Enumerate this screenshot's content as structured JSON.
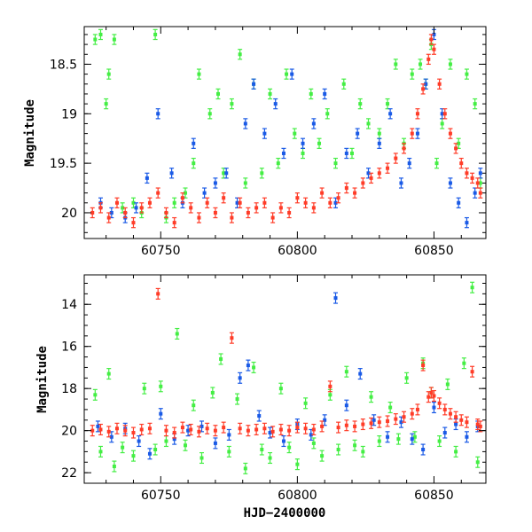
{
  "chart_data": [
    {
      "type": "scatter",
      "title": "",
      "xlabel": "",
      "ylabel": "Magnitude",
      "xlim": [
        60722,
        60869
      ],
      "ylim": [
        20.26,
        18.12
      ],
      "y_inverted": true,
      "xticks": [
        60750,
        60800,
        60850
      ],
      "xtick_labels": [
        "60750",
        "60800",
        "60850"
      ],
      "yticks": [
        18.5,
        19,
        19.5,
        20
      ],
      "ytick_labels": [
        "18.5",
        "19",
        "19.5",
        "20"
      ],
      "grid": false,
      "legend": "none",
      "error_bars": true,
      "series": [
        {
          "color": "#44ee44",
          "x": [
            60726,
            60728,
            60730,
            60731,
            60733,
            60736,
            60740,
            60743,
            60748,
            60752,
            60755,
            60759,
            60762,
            60764,
            60768,
            60771,
            60773,
            60776,
            60779,
            60781,
            60784,
            60787,
            60790,
            60793,
            60796,
            60799,
            60802,
            60805,
            60808,
            60811,
            60814,
            60817,
            60820,
            60823,
            60826,
            60830,
            60833,
            60836,
            60839,
            60842,
            60845,
            60847,
            60849,
            60851,
            60853,
            60856,
            60859,
            60862,
            60865,
            60867
          ],
          "y": [
            18.25,
            18.2,
            18.9,
            18.6,
            18.25,
            19.95,
            19.9,
            20.0,
            18.2,
            20.05,
            19.9,
            19.8,
            19.5,
            18.6,
            19.0,
            18.8,
            19.6,
            18.9,
            18.4,
            19.7,
            18.7,
            19.6,
            18.8,
            19.5,
            18.6,
            19.2,
            19.4,
            18.8,
            19.3,
            19.0,
            19.5,
            18.7,
            19.4,
            18.9,
            19.1,
            19.2,
            18.9,
            18.5,
            19.3,
            18.6,
            18.5,
            18.7,
            18.3,
            19.5,
            19.1,
            18.5,
            19.3,
            18.6,
            18.9,
            19.7
          ]
        },
        {
          "color": "#1a5ae6",
          "x": [
            60728,
            60732,
            60737,
            60741,
            60745,
            60749,
            60754,
            60758,
            60762,
            60766,
            60770,
            60774,
            60778,
            60781,
            60784,
            60788,
            60792,
            60795,
            60798,
            60802,
            60806,
            60810,
            60814,
            60818,
            60822,
            60826,
            60830,
            60834,
            60838,
            60841,
            60844,
            60847,
            60850,
            60853,
            60856,
            60859,
            60862,
            60865,
            60867
          ],
          "y": [
            19.9,
            20.0,
            20.05,
            19.95,
            19.65,
            19.0,
            19.6,
            19.9,
            19.3,
            19.8,
            19.7,
            19.6,
            19.9,
            19.1,
            18.7,
            19.2,
            18.9,
            19.4,
            18.6,
            19.3,
            19.1,
            18.8,
            19.9,
            19.4,
            19.2,
            19.6,
            19.3,
            19.0,
            19.7,
            19.5,
            19.2,
            18.7,
            18.2,
            19.0,
            19.7,
            19.9,
            20.1,
            19.8,
            19.6
          ]
        },
        {
          "color": "#ff3c28",
          "x": [
            60725,
            60728,
            60731,
            60734,
            60737,
            60740,
            60743,
            60746,
            60749,
            60752,
            60755,
            60758,
            60761,
            60764,
            60767,
            60770,
            60773,
            60776,
            60779,
            60782,
            60785,
            60788,
            60791,
            60794,
            60797,
            60800,
            60803,
            60806,
            60809,
            60812,
            60815,
            60818,
            60821,
            60824,
            60827,
            60830,
            60833,
            60836,
            60839,
            60842,
            60844,
            60846,
            60848,
            60849,
            60850,
            60852,
            60854,
            60856,
            60858,
            60860,
            60862,
            60864,
            60866,
            60867
          ],
          "y": [
            20.0,
            19.95,
            20.05,
            19.9,
            20.0,
            20.1,
            19.95,
            19.9,
            19.8,
            20.0,
            20.1,
            19.85,
            19.95,
            20.05,
            19.9,
            20.0,
            19.85,
            20.05,
            19.9,
            20.0,
            19.95,
            19.9,
            20.05,
            19.95,
            20.0,
            19.85,
            19.9,
            19.95,
            19.8,
            19.9,
            19.85,
            19.75,
            19.8,
            19.7,
            19.65,
            19.6,
            19.55,
            19.45,
            19.35,
            19.2,
            19.0,
            18.75,
            18.45,
            18.25,
            18.35,
            18.7,
            19.0,
            19.2,
            19.35,
            19.5,
            19.6,
            19.65,
            19.7,
            19.8
          ]
        }
      ]
    },
    {
      "type": "scatter",
      "title": "",
      "xlabel": "HJD−2400000",
      "ylabel": "Magnitude",
      "xlim": [
        60722,
        60869
      ],
      "ylim": [
        22.5,
        12.6
      ],
      "y_inverted": true,
      "xticks": [
        60750,
        60800,
        60850
      ],
      "xtick_labels": [
        "60750",
        "60800",
        "60850"
      ],
      "yticks": [
        14,
        16,
        18,
        20,
        22
      ],
      "ytick_labels": [
        "14",
        "16",
        "18",
        "20",
        "22"
      ],
      "grid": false,
      "legend": "none",
      "error_bars": true,
      "series": [
        {
          "color": "#44ee44",
          "x": [
            60726,
            60728,
            60731,
            60733,
            60736,
            60740,
            60744,
            60748,
            60750,
            60752,
            60756,
            60759,
            60762,
            60765,
            60769,
            60772,
            60775,
            60778,
            60781,
            60784,
            60787,
            60790,
            60794,
            60797,
            60800,
            60803,
            60806,
            60809,
            60812,
            60815,
            60818,
            60821,
            60824,
            60827,
            60830,
            60834,
            60837,
            60840,
            60843,
            60846,
            60849,
            60852,
            60855,
            60858,
            60861,
            60864,
            60866
          ],
          "y": [
            18.3,
            21.0,
            17.3,
            21.7,
            20.8,
            21.2,
            18.0,
            20.9,
            17.9,
            20.5,
            15.4,
            20.7,
            18.8,
            21.3,
            18.2,
            16.6,
            21.0,
            18.5,
            21.8,
            17.0,
            20.9,
            21.3,
            18.0,
            20.8,
            21.6,
            18.7,
            20.6,
            21.2,
            18.3,
            20.9,
            17.2,
            20.7,
            21.0,
            18.4,
            20.5,
            18.9,
            20.4,
            17.5,
            20.3,
            16.8,
            18.2,
            20.5,
            17.8,
            21.0,
            16.8,
            13.2,
            21.5
          ]
        },
        {
          "color": "#1a5ae6",
          "x": [
            60727,
            60732,
            60737,
            60742,
            60746,
            60750,
            60755,
            60760,
            60765,
            60770,
            60775,
            60779,
            60782,
            60786,
            60790,
            60795,
            60800,
            60805,
            60810,
            60814,
            60818,
            60823,
            60828,
            60833,
            60838,
            60842,
            60846,
            60850,
            60854,
            60858,
            60862,
            60866
          ],
          "y": [
            19.8,
            20.3,
            19.9,
            20.5,
            21.1,
            19.2,
            20.4,
            20.0,
            19.8,
            20.6,
            20.2,
            17.5,
            16.9,
            19.3,
            20.1,
            20.5,
            19.7,
            20.2,
            19.5,
            13.7,
            18.8,
            17.3,
            19.5,
            20.3,
            19.6,
            20.4,
            20.9,
            18.9,
            20.1,
            19.7,
            20.3,
            19.8
          ]
        },
        {
          "color": "#ff3c28",
          "x": [
            60725,
            60728,
            60731,
            60734,
            60737,
            60740,
            60743,
            60746,
            60749,
            60752,
            60755,
            60758,
            60761,
            60764,
            60767,
            60770,
            60773,
            60776,
            60779,
            60782,
            60785,
            60788,
            60791,
            60794,
            60797,
            60800,
            60803,
            60806,
            60809,
            60812,
            60815,
            60818,
            60821,
            60824,
            60827,
            60830,
            60833,
            60836,
            60839,
            60842,
            60844,
            60846,
            60848,
            60849,
            60850,
            60852,
            60854,
            60856,
            60858,
            60860,
            60862,
            60864,
            60866,
            60867
          ],
          "y": [
            20.0,
            19.95,
            20.05,
            19.9,
            20.0,
            20.1,
            19.95,
            19.9,
            13.5,
            20.0,
            20.1,
            19.85,
            19.95,
            20.05,
            19.9,
            20.0,
            19.85,
            15.6,
            19.9,
            20.0,
            19.95,
            19.9,
            20.05,
            19.95,
            20.0,
            19.85,
            19.9,
            19.95,
            19.8,
            17.9,
            19.85,
            19.75,
            19.8,
            19.7,
            19.65,
            19.6,
            19.55,
            19.45,
            19.35,
            19.2,
            19.0,
            16.9,
            18.4,
            18.2,
            18.35,
            18.7,
            19.0,
            19.2,
            19.35,
            19.5,
            19.6,
            17.2,
            19.7,
            19.8
          ]
        }
      ]
    }
  ]
}
